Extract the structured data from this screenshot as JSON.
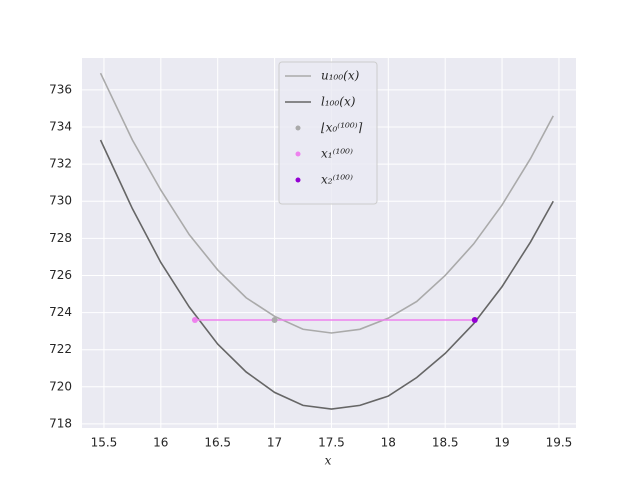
{
  "chart_data": {
    "type": "line",
    "xlabel": "x",
    "xlim": [
      15.307,
      19.65
    ],
    "xticks": [
      15.5,
      16,
      16.5,
      17,
      17.5,
      18,
      18.5,
      19,
      19.5
    ],
    "ylim": [
      717.78,
      737.72
    ],
    "yticks": [
      718,
      720,
      722,
      724,
      726,
      728,
      730,
      732,
      734,
      736
    ],
    "grid": true,
    "legend": "upper center",
    "series": [
      {
        "name": "u₁₀₀(x)",
        "color": "#aaaaaa",
        "x": [
          15.47,
          15.75,
          16,
          16.25,
          16.5,
          16.75,
          17,
          17.25,
          17.5,
          17.75,
          18,
          18.25,
          18.5,
          18.75,
          19,
          19.25,
          19.45
        ],
        "values": [
          736.9,
          733.3,
          730.6,
          728.2,
          726.3,
          724.8,
          723.8,
          723.1,
          722.9,
          723.1,
          723.7,
          724.6,
          726.0,
          727.7,
          729.8,
          732.3,
          734.6
        ]
      },
      {
        "name": "l₁₀₀(x)",
        "color": "#666666",
        "x": [
          15.47,
          15.75,
          16,
          16.25,
          16.5,
          16.75,
          17,
          17.25,
          17.5,
          17.75,
          18,
          18.25,
          18.5,
          18.75,
          19,
          19.25,
          19.45
        ],
        "values": [
          733.3,
          729.6,
          726.7,
          724.3,
          722.3,
          720.8,
          719.7,
          719.0,
          718.8,
          719.0,
          719.5,
          720.5,
          721.8,
          723.4,
          725.4,
          727.8,
          730.0
        ]
      },
      {
        "color": "#ee82ee",
        "x": [
          16.3,
          18.76
        ],
        "values": [
          723.6,
          723.6
        ]
      },
      {
        "name": "⌊x₀⁽¹⁰⁰⁾⌉",
        "color": "#aaaaaa",
        "marker": true,
        "x": [
          17
        ],
        "values": [
          723.6
        ]
      },
      {
        "name": "x₁⁽¹⁰⁰⁾",
        "color": "#ee82ee",
        "marker": true,
        "x": [
          16.3
        ],
        "values": [
          723.6
        ]
      },
      {
        "name": "x₂⁽¹⁰⁰⁾",
        "color": "#9400d3",
        "marker": true,
        "x": [
          18.76
        ],
        "values": [
          723.6
        ]
      }
    ]
  }
}
